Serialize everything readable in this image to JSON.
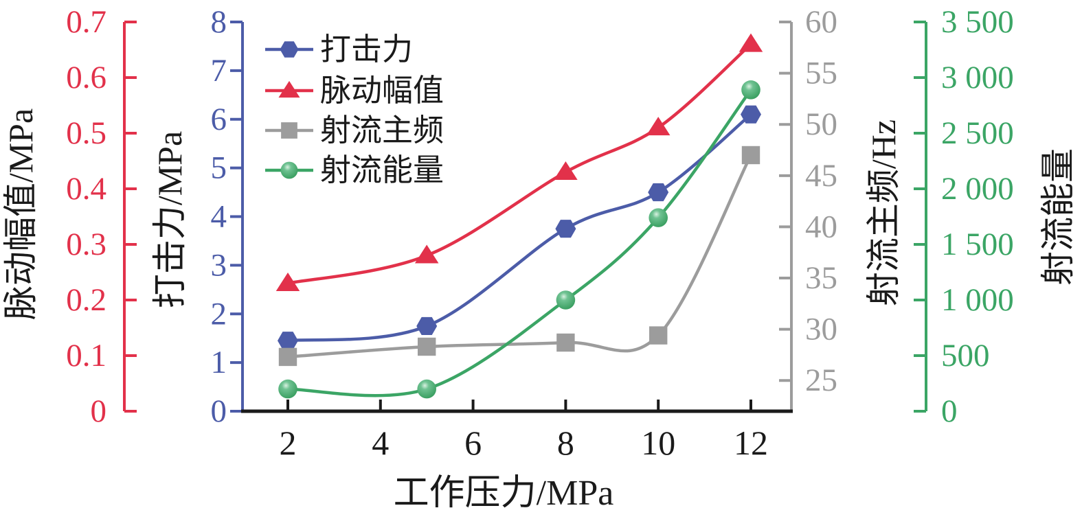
{
  "chart_data": {
    "type": "line",
    "title": "",
    "xlabel": "工作压力/MPa",
    "x": [
      2,
      5,
      8,
      10,
      12
    ],
    "x_axis": {
      "ticks": [
        2,
        4,
        6,
        8,
        10,
        12
      ],
      "tick_labels": [
        "2",
        "4",
        "6",
        "8",
        "10",
        "12"
      ],
      "range": [
        1.05,
        12.9
      ]
    },
    "grid": false,
    "axes": {
      "pulsation": {
        "label": "脉动幅值/MPa",
        "color": "#e2314a",
        "min": 0,
        "max": 0.7,
        "ticks": [
          0,
          0.1,
          0.2,
          0.3,
          0.4,
          0.5,
          0.6,
          0.7
        ],
        "tick_labels": [
          "0",
          "0.1",
          "0.2",
          "0.3",
          "0.4",
          "0.5",
          "0.6",
          "0.7"
        ]
      },
      "impact": {
        "label": "打击力/MPa",
        "color": "#4c5ca8",
        "min": 0,
        "max": 8,
        "ticks": [
          0,
          1,
          2,
          3,
          4,
          5,
          6,
          7,
          8
        ],
        "tick_labels": [
          "0",
          "1",
          "2",
          "3",
          "4",
          "5",
          "6",
          "7",
          "8"
        ]
      },
      "frequency": {
        "label": "射流主频/Hz",
        "color": "#9c9c9c",
        "min": 22,
        "max": 60,
        "ticks": [
          25,
          30,
          35,
          40,
          45,
          50,
          55,
          60
        ],
        "tick_labels": [
          "25",
          "30",
          "35",
          "40",
          "45",
          "50",
          "55",
          "60"
        ]
      },
      "energy": {
        "label": "射流能量",
        "color": "#3ba565",
        "min": 0,
        "max": 3500,
        "ticks": [
          0,
          500,
          1000,
          1500,
          2000,
          2500,
          3000,
          3500
        ],
        "tick_labels": [
          "0",
          "500",
          "1 000",
          "1 500",
          "2 000",
          "2 500",
          "3 000",
          "3 500"
        ]
      }
    },
    "series": [
      {
        "key": "impact",
        "name": "打击力",
        "axis": "impact",
        "color": "#4c5ca8",
        "marker": "hexagon",
        "values": [
          1.45,
          1.75,
          3.75,
          4.5,
          6.1
        ]
      },
      {
        "key": "pulsation",
        "name": "脉动幅值",
        "axis": "pulsation",
        "color": "#e2314a",
        "marker": "triangle",
        "values": [
          0.23,
          0.28,
          0.43,
          0.51,
          0.66
        ]
      },
      {
        "key": "frequency",
        "name": "射流主频",
        "axis": "frequency",
        "color": "#9c9c9c",
        "marker": "square",
        "values": [
          27.3,
          28.3,
          28.7,
          29.4,
          47
        ]
      },
      {
        "key": "energy",
        "name": "射流能量",
        "axis": "energy",
        "color": "#3ba565",
        "marker": "sphere",
        "values": [
          200,
          200,
          1000,
          1740,
          2890
        ]
      }
    ],
    "legend": {
      "position": "top-left-inside",
      "items": [
        "打击力",
        "脉动幅值",
        "射流主频",
        "射流能量"
      ]
    }
  }
}
